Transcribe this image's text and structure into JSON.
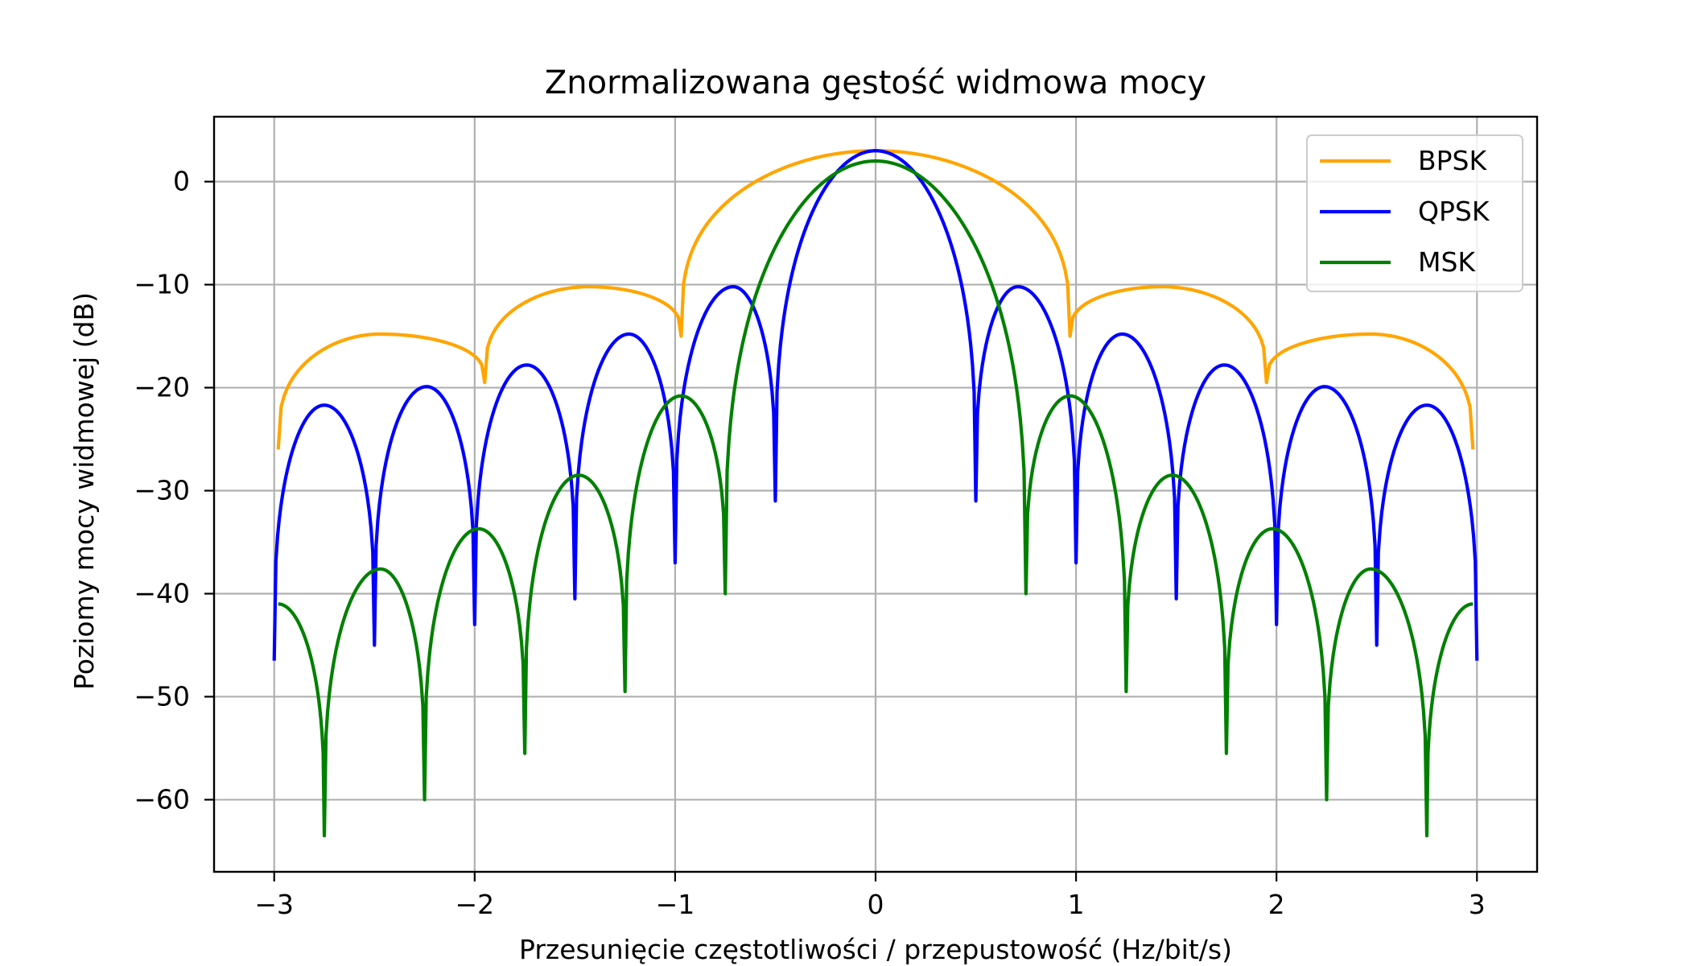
{
  "chart_data": {
    "type": "line",
    "title": "Znormalizowana gęstość widmowa mocy",
    "xlabel": "Przesunięcie częstotliwości / przepustowość (Hz/bit/s)",
    "ylabel": "Poziomy mocy widmowej (dB)",
    "xlim": [
      -3.3,
      3.3
    ],
    "ylim": [
      -67,
      6.3
    ],
    "xticks": [
      -3,
      -2,
      -1,
      0,
      1,
      2,
      3
    ],
    "xtick_labels": [
      "−3",
      "−2",
      "−1",
      "0",
      "1",
      "2",
      "3"
    ],
    "yticks": [
      0,
      -10,
      -20,
      -30,
      -40,
      -50,
      -60
    ],
    "ytick_labels": [
      "0",
      "−10",
      "−20",
      "−30",
      "−40",
      "−50",
      "−60"
    ],
    "grid": true,
    "legend_position": "top-right",
    "x_range": [
      -3,
      3
    ],
    "series": [
      {
        "name": "BPSK",
        "color": "#FFA500",
        "x": [
          0,
          0.25,
          0.5,
          0.75,
          0.95,
          1.2,
          1.43,
          1.7,
          1.95,
          2.2,
          2.47,
          2.75,
          2.98
        ],
        "y": [
          3.0,
          2.0,
          -1.0,
          -6.5,
          -15.0,
          -12.0,
          -10.2,
          -13.0,
          -19.5,
          -17.0,
          -14.8,
          -18.0,
          -26.0
        ]
      },
      {
        "name": "QPSK",
        "color": "#0000FF",
        "x": [
          0,
          0.25,
          0.5,
          0.71,
          1.0,
          1.23,
          1.5,
          1.74,
          2.0,
          2.24,
          2.5,
          2.75,
          3.0
        ],
        "y": [
          3.0,
          -3.9,
          -31.0,
          -10.2,
          -37.0,
          -14.8,
          -40.5,
          -17.8,
          -43.0,
          -19.9,
          -45.0,
          -21.7,
          -46.5
        ]
      },
      {
        "name": "MSK",
        "color": "#008000",
        "x": [
          0,
          0.25,
          0.5,
          0.75,
          0.95,
          1.25,
          1.48,
          1.75,
          1.98,
          2.25,
          2.47,
          2.75,
          2.98
        ],
        "y": [
          2.0,
          0.2,
          -5.9,
          -40.0,
          -20.8,
          -49.5,
          -28.5,
          -55.5,
          -33.7,
          -60.0,
          -37.6,
          -63.5,
          -41.0
        ]
      }
    ]
  }
}
